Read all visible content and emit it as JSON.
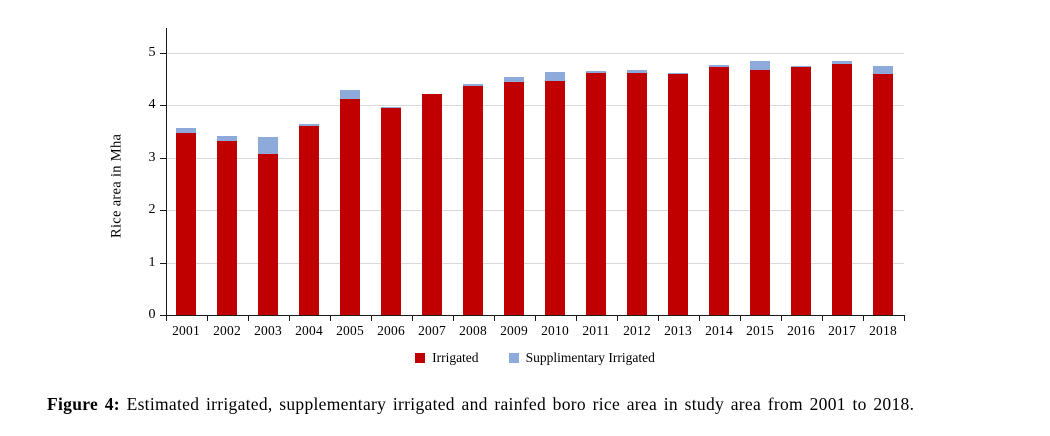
{
  "chart_data": {
    "type": "bar",
    "stacked": true,
    "title": "",
    "xlabel": "",
    "ylabel": "Rice area in Mha",
    "ylim": [
      0,
      5
    ],
    "yticks": [
      0,
      1,
      2,
      3,
      4,
      5
    ],
    "grid": "horizontal",
    "legend_position": "bottom",
    "categories": [
      "2001",
      "2002",
      "2003",
      "2004",
      "2005",
      "2006",
      "2007",
      "2008",
      "2009",
      "2010",
      "2011",
      "2012",
      "2013",
      "2014",
      "2015",
      "2016",
      "2017",
      "2018"
    ],
    "series": [
      {
        "name": "Irrigated",
        "color": "#C00000",
        "values": [
          3.46,
          3.32,
          3.07,
          3.6,
          4.11,
          3.94,
          4.22,
          4.37,
          4.45,
          4.47,
          4.62,
          4.62,
          4.6,
          4.73,
          4.67,
          4.73,
          4.78,
          4.6
        ]
      },
      {
        "name": "Supplimentary Irrigated",
        "color": "#8EAADB",
        "values": [
          0.1,
          0.1,
          0.32,
          0.04,
          0.17,
          0.02,
          0.0,
          0.03,
          0.09,
          0.16,
          0.03,
          0.05,
          0.02,
          0.03,
          0.17,
          0.02,
          0.06,
          0.15
        ]
      }
    ]
  },
  "caption": {
    "label": "Figure 4:",
    "text": " Estimated irrigated, supplementary irrigated and rainfed boro rice area in study area from 2001 to 2018."
  },
  "colors": {
    "irrigated": "#C00000",
    "supplementary_irrigated": "#8EAADB",
    "gridline": "#D9D9D9",
    "axis": "#1A1A1A"
  }
}
